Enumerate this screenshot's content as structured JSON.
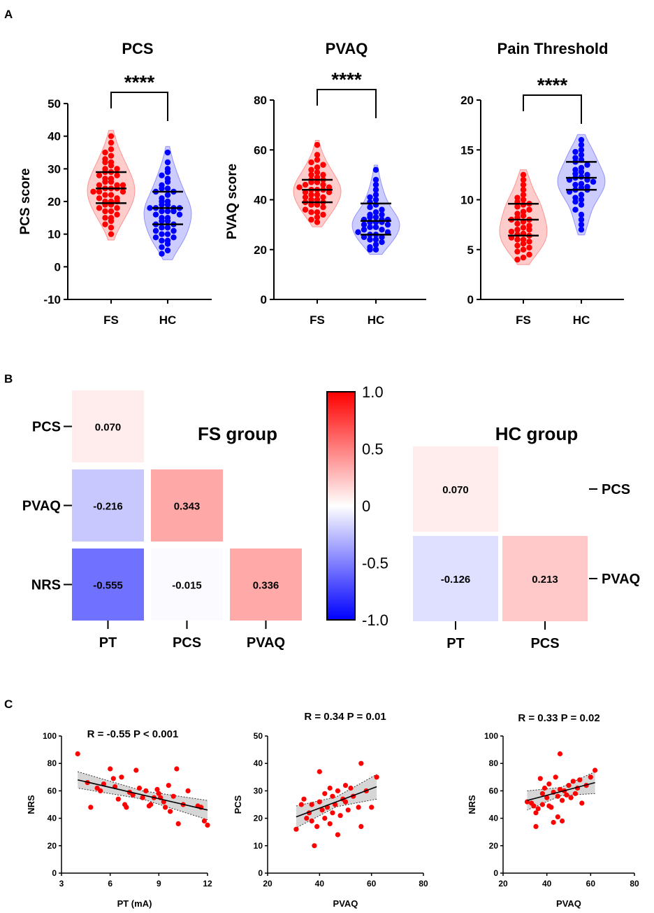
{
  "panels": {
    "a": "A",
    "b": "B",
    "c": "C"
  },
  "chart_data": [
    {
      "type": "violin",
      "title": "PCS",
      "ylabel": "PCS score",
      "ylim": [
        -10,
        50
      ],
      "yticks": [
        -10,
        0,
        10,
        20,
        30,
        40,
        50
      ],
      "categories": [
        "FS",
        "HC"
      ],
      "significance": "****",
      "series": [
        {
          "name": "FS",
          "color": "#ff0000",
          "quartiles": [
            19.5,
            24,
            29
          ],
          "values": [
            40,
            38,
            36,
            35,
            34,
            33,
            32,
            32,
            31,
            30,
            30,
            29,
            29,
            28,
            28,
            27,
            27,
            26,
            26,
            25,
            25,
            25,
            24,
            24,
            24,
            23,
            23,
            23,
            22,
            22,
            21,
            21,
            20,
            20,
            20,
            19,
            19,
            18,
            18,
            17,
            17,
            16,
            15,
            15,
            14,
            13,
            12,
            10
          ]
        },
        {
          "name": "HC",
          "color": "#0000ff",
          "quartiles": [
            13,
            18,
            23
          ],
          "values": [
            35,
            32,
            30,
            29,
            28,
            27,
            26,
            25,
            24,
            24,
            23,
            23,
            22,
            21,
            20,
            20,
            19,
            19,
            18,
            18,
            18,
            18,
            17,
            17,
            17,
            16,
            16,
            15,
            15,
            14,
            14,
            13,
            13,
            12,
            12,
            11,
            11,
            10,
            10,
            9,
            9,
            8,
            8,
            7,
            6,
            5,
            4
          ]
        }
      ]
    },
    {
      "type": "violin",
      "title": "PVAQ",
      "ylabel": "PVAQ score",
      "ylim": [
        0,
        80
      ],
      "yticks": [
        0,
        20,
        40,
        60,
        80
      ],
      "categories": [
        "FS",
        "HC"
      ],
      "significance": "****",
      "series": [
        {
          "name": "FS",
          "color": "#ff0000",
          "quartiles": [
            39,
            44,
            48
          ],
          "values": [
            62,
            58,
            56,
            55,
            54,
            53,
            52,
            51,
            50,
            50,
            49,
            48,
            48,
            47,
            47,
            46,
            46,
            45,
            45,
            44,
            44,
            44,
            43,
            43,
            42,
            42,
            41,
            41,
            40,
            40,
            39,
            39,
            38,
            38,
            37,
            36,
            35,
            35,
            34,
            33,
            32,
            31
          ]
        },
        {
          "name": "HC",
          "color": "#0000ff",
          "quartiles": [
            26,
            31.5,
            38.5
          ],
          "values": [
            52,
            48,
            46,
            44,
            42,
            41,
            40,
            39,
            38,
            37,
            36,
            35,
            34,
            34,
            33,
            33,
            32,
            32,
            32,
            31,
            31,
            31,
            30,
            30,
            29,
            29,
            28,
            28,
            27,
            27,
            26,
            26,
            25,
            25,
            24,
            24,
            23,
            22,
            21,
            20,
            20
          ]
        }
      ]
    },
    {
      "type": "violin",
      "title": "Pain Threshold",
      "ylabel": "",
      "ylim": [
        0,
        20
      ],
      "yticks": [
        0,
        5,
        10,
        15,
        20
      ],
      "categories": [
        "FS",
        "HC"
      ],
      "significance": "****",
      "series": [
        {
          "name": "FS",
          "color": "#ff0000",
          "quartiles": [
            6.4,
            8,
            9.6
          ],
          "values": [
            12.5,
            12,
            11.5,
            11,
            10.5,
            10.2,
            10,
            9.8,
            9.6,
            9.5,
            9.3,
            9,
            8.8,
            8.6,
            8.4,
            8.2,
            8,
            8,
            7.8,
            7.6,
            7.4,
            7.2,
            7,
            7,
            6.8,
            6.6,
            6.5,
            6.4,
            6.2,
            6,
            6,
            5.8,
            5.6,
            5.4,
            5.2,
            5,
            4.8,
            4.5,
            4.2,
            4
          ]
        },
        {
          "name": "HC",
          "color": "#0000ff",
          "quartiles": [
            11,
            12.2,
            13.8
          ],
          "values": [
            16,
            15.5,
            15,
            14.8,
            14.5,
            14.2,
            14,
            13.8,
            13.5,
            13.2,
            13,
            12.8,
            12.6,
            12.5,
            12.3,
            12.2,
            12,
            12,
            11.8,
            11.6,
            11.5,
            11.3,
            11.2,
            11,
            11,
            10.8,
            10.5,
            10.2,
            10,
            9.8,
            9.5,
            9,
            8.5,
            8,
            7.5,
            7
          ]
        }
      ]
    },
    {
      "type": "heatmap",
      "title": "FS group",
      "rows": [
        "PCS",
        "PVAQ",
        "NRS"
      ],
      "cols": [
        "PT",
        "PCS",
        "PVAQ"
      ],
      "cells": [
        {
          "row": 0,
          "col": 0,
          "value": 0.07,
          "label": "0.070"
        },
        {
          "row": 1,
          "col": 0,
          "value": -0.216,
          "label": "-0.216"
        },
        {
          "row": 1,
          "col": 1,
          "value": 0.343,
          "label": "0.343"
        },
        {
          "row": 2,
          "col": 0,
          "value": -0.555,
          "label": "-0.555"
        },
        {
          "row": 2,
          "col": 1,
          "value": -0.015,
          "label": "-0.015"
        },
        {
          "row": 2,
          "col": 2,
          "value": 0.336,
          "label": "0.336"
        }
      ]
    },
    {
      "type": "colorbar",
      "range": [
        -1.0,
        1.0
      ],
      "ticks": [
        "1.0",
        "0.5",
        "0",
        "-0.5",
        "-1.0"
      ],
      "colors": {
        "low": "#0000ff",
        "mid": "#ffffff",
        "high": "#ff0000"
      }
    },
    {
      "type": "heatmap",
      "title": "HC group",
      "rows": [
        "PCS",
        "PVAQ"
      ],
      "cols": [
        "PT",
        "PCS"
      ],
      "cells": [
        {
          "row": 0,
          "col": 0,
          "value": 0.07,
          "label": "0.070"
        },
        {
          "row": 1,
          "col": 0,
          "value": -0.126,
          "label": "-0.126"
        },
        {
          "row": 1,
          "col": 1,
          "value": 0.213,
          "label": "0.213"
        }
      ]
    },
    {
      "type": "scatter",
      "title": "R = -0.55 P < 0.001",
      "xlabel": "PT (mA)",
      "ylabel": "NRS",
      "xlim": [
        3,
        12
      ],
      "ylim": [
        0,
        100
      ],
      "xticks": [
        3,
        6,
        9,
        12
      ],
      "yticks": [
        0,
        20,
        40,
        60,
        80,
        100
      ],
      "fit": {
        "x": [
          4,
          12
        ],
        "y": [
          68,
          46
        ],
        "ci_half_width": [
          6,
          3,
          7
        ]
      },
      "points": [
        [
          4,
          87
        ],
        [
          4.6,
          66
        ],
        [
          4.8,
          48
        ],
        [
          5.2,
          62
        ],
        [
          5.4,
          60
        ],
        [
          5.6,
          65
        ],
        [
          6,
          76
        ],
        [
          6.2,
          69
        ],
        [
          6.3,
          63
        ],
        [
          6.5,
          54
        ],
        [
          6.7,
          70
        ],
        [
          6.9,
          50
        ],
        [
          7,
          48
        ],
        [
          7.2,
          59
        ],
        [
          7.4,
          57
        ],
        [
          7.6,
          75
        ],
        [
          7.8,
          62
        ],
        [
          8,
          55
        ],
        [
          8.2,
          60
        ],
        [
          8.4,
          49
        ],
        [
          8.5,
          50
        ],
        [
          8.7,
          55
        ],
        [
          8.9,
          61
        ],
        [
          9,
          58
        ],
        [
          9.1,
          55
        ],
        [
          9.3,
          52
        ],
        [
          9.4,
          48
        ],
        [
          9.6,
          64
        ],
        [
          9.7,
          45
        ],
        [
          9.9,
          56
        ],
        [
          10.1,
          76
        ],
        [
          10.2,
          36
        ],
        [
          10.5,
          50
        ],
        [
          10.8,
          60
        ],
        [
          11.4,
          49
        ],
        [
          11.6,
          48
        ],
        [
          11.8,
          38
        ],
        [
          12,
          35
        ]
      ],
      "color": "#ff0000"
    },
    {
      "type": "scatter",
      "title": "R = 0.34 P = 0.01",
      "xlabel": "PVAQ",
      "ylabel": "PCS",
      "xlim": [
        20,
        80
      ],
      "ylim": [
        0,
        50
      ],
      "xticks": [
        20,
        40,
        60,
        80
      ],
      "yticks": [
        0,
        10,
        20,
        30,
        40,
        50
      ],
      "fit": {
        "x": [
          31,
          62
        ],
        "y": [
          20.5,
          31.5
        ],
        "ci_half_width": [
          4,
          1.8,
          4.5
        ]
      },
      "points": [
        [
          31,
          16
        ],
        [
          33,
          25
        ],
        [
          34,
          27
        ],
        [
          35,
          20
        ],
        [
          36,
          22
        ],
        [
          37,
          25
        ],
        [
          37,
          19
        ],
        [
          38,
          10
        ],
        [
          39,
          17
        ],
        [
          40,
          37
        ],
        [
          40,
          26
        ],
        [
          41,
          23
        ],
        [
          42,
          29
        ],
        [
          42,
          20
        ],
        [
          43,
          24
        ],
        [
          44,
          31
        ],
        [
          44,
          18
        ],
        [
          45,
          28
        ],
        [
          45,
          22
        ],
        [
          46,
          25
        ],
        [
          47,
          30
        ],
        [
          47,
          14
        ],
        [
          48,
          21
        ],
        [
          49,
          27
        ],
        [
          50,
          32
        ],
        [
          50,
          26
        ],
        [
          51,
          23
        ],
        [
          52,
          31
        ],
        [
          53,
          28
        ],
        [
          55,
          24
        ],
        [
          56,
          40
        ],
        [
          56,
          17
        ],
        [
          58,
          30
        ],
        [
          60,
          24
        ],
        [
          62,
          35
        ]
      ],
      "color": "#ff0000"
    },
    {
      "type": "scatter",
      "title": "R = 0.33 P = 0.02",
      "xlabel": "PVAQ",
      "ylabel": "NRS",
      "xlim": [
        20,
        80
      ],
      "ylim": [
        0,
        100
      ],
      "xticks": [
        20,
        40,
        60,
        80
      ],
      "yticks": [
        0,
        20,
        40,
        60,
        80,
        100
      ],
      "fit": {
        "x": [
          31,
          62
        ],
        "y": [
          53,
          66
        ],
        "ci_half_width": [
          7,
          3,
          8
        ]
      },
      "points": [
        [
          31,
          52
        ],
        [
          33,
          51
        ],
        [
          34,
          49
        ],
        [
          35,
          34
        ],
        [
          35,
          44
        ],
        [
          36,
          47
        ],
        [
          37,
          69
        ],
        [
          38,
          58
        ],
        [
          38,
          50
        ],
        [
          39,
          62
        ],
        [
          40,
          55
        ],
        [
          41,
          49
        ],
        [
          41,
          65
        ],
        [
          42,
          48
        ],
        [
          43,
          59
        ],
        [
          43,
          37
        ],
        [
          44,
          70
        ],
        [
          45,
          56
        ],
        [
          45,
          41
        ],
        [
          46,
          87
        ],
        [
          46,
          61
        ],
        [
          47,
          53
        ],
        [
          47,
          38
        ],
        [
          48,
          60
        ],
        [
          49,
          57
        ],
        [
          50,
          64
        ],
        [
          51,
          55
        ],
        [
          52,
          67
        ],
        [
          53,
          58
        ],
        [
          54,
          62
        ],
        [
          55,
          68
        ],
        [
          56,
          51
        ],
        [
          58,
          64
        ],
        [
          60,
          70
        ],
        [
          62,
          75
        ]
      ],
      "color": "#ff0000"
    }
  ]
}
